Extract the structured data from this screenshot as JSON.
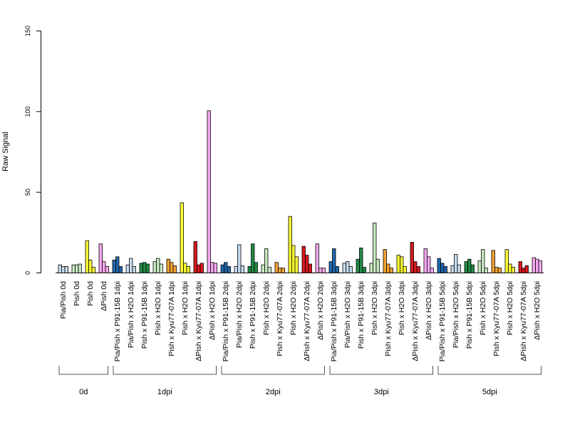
{
  "chart_data": {
    "type": "bar",
    "title": "",
    "xlabel": "",
    "ylabel": "Raw Signal",
    "ylim": [
      0,
      150
    ],
    "yticks": [
      0,
      50,
      100,
      150
    ],
    "bars_per_group": 3,
    "categories": [
      "Pia/Pish 0d",
      "Pish 0d",
      "Pish 0d",
      "ΔPish 0d",
      "Pia/Pish x P91-15B 1dpi",
      "Pia/Pish x H2O 1dpi",
      "Pish x P91-15B 1dpi",
      "Pish x H2O 1dpi",
      "Pish x Kyu77-07A 1dpi",
      "Pish x H2O 1dpi",
      "ΔPish x Kyu77-07A 1dpi",
      "ΔPish x H2O 1dpi",
      "Pia/Pish x P91-15B 2dpi",
      "Pia/Pish x H2O 2dpi",
      "Pish x P91-15B 2dpi",
      "Pish x H2O 2dpi",
      "Pish x Kyu77-07A 2dpi",
      "Pish x H2O 2dpi",
      "ΔPish x Kyu77-07A 2dpi",
      "ΔPish x H2O 2dpi",
      "Pia/Pish x P91-15B 3dpi",
      "Pia/Pish x H2O 3dpi",
      "Pish x P91-15B 3dpi",
      "Pish x H2O 3dpi",
      "Pish x Kyu77-07A 3dpi",
      "Pish x H2O 3dpi",
      "ΔPish x Kyu77-07A 3dpi",
      "ΔPish x H2O 3dpi",
      "Pia/Pish x P91-15B 5dpi",
      "Pia/Pish x H2O 5dpi",
      "Pish x P91-15B 5dpi",
      "Pish x H2O 5dpi",
      "Pish x Kyu77-07A 5dpi",
      "Pish x H2O 5dpi",
      "ΔPish x Kyu77-07A 5dpi",
      "ΔPish x H2O 5dpi"
    ],
    "colors": [
      "#c6dbef",
      "#c7e9c0",
      "#ffff33",
      "#f7a8f0",
      "#2166ac",
      "#c6dbef",
      "#238b45",
      "#c7e9c0",
      "#f4a132",
      "#ffff33",
      "#d7191c",
      "#f7a8f0",
      "#2166ac",
      "#c6dbef",
      "#238b45",
      "#c7e9c0",
      "#f4a132",
      "#ffff33",
      "#d7191c",
      "#f7a8f0",
      "#2166ac",
      "#c6dbef",
      "#238b45",
      "#c7e9c0",
      "#f4a132",
      "#ffff33",
      "#d7191c",
      "#f7a8f0",
      "#2166ac",
      "#c6dbef",
      "#238b45",
      "#c7e9c0",
      "#f4a132",
      "#ffff33",
      "#d7191c",
      "#f7a8f0"
    ],
    "values": [
      [
        5,
        4,
        4
      ],
      [
        5,
        5,
        5.5
      ],
      [
        20,
        8,
        3.5
      ],
      [
        18,
        7,
        4
      ],
      [
        8,
        10,
        4
      ],
      [
        5,
        9,
        4
      ],
      [
        6,
        6.5,
        5.5
      ],
      [
        7,
        9,
        5.5
      ],
      [
        8.5,
        6.5,
        4.5
      ],
      [
        43.5,
        6,
        4
      ],
      [
        19.5,
        5,
        6
      ],
      [
        100.5,
        6.5,
        6
      ],
      [
        5,
        6.5,
        4
      ],
      [
        4,
        17.5,
        4.5
      ],
      [
        4,
        18,
        6.5
      ],
      [
        5,
        15,
        3.5
      ],
      [
        6.5,
        3,
        3
      ],
      [
        35,
        17,
        10
      ],
      [
        16.5,
        11,
        5.5
      ],
      [
        18,
        3,
        3
      ],
      [
        7,
        15,
        4
      ],
      [
        6,
        7,
        4
      ],
      [
        8.5,
        15.5,
        3.5
      ],
      [
        6,
        31,
        8.5
      ],
      [
        14.5,
        5.5,
        3
      ],
      [
        11,
        10,
        4
      ],
      [
        19,
        7,
        4
      ],
      [
        15,
        10,
        3
      ],
      [
        9,
        6,
        4
      ],
      [
        4.5,
        11.5,
        5
      ],
      [
        7,
        8.5,
        5
      ],
      [
        7.5,
        14.5,
        3
      ],
      [
        14,
        3.5,
        3
      ],
      [
        14.5,
        5.5,
        3.5
      ],
      [
        7,
        3,
        4.5
      ],
      [
        9.5,
        8.5,
        7.5
      ]
    ],
    "groups": [
      {
        "label": "0d",
        "start": 0,
        "end": 3
      },
      {
        "label": "1dpi",
        "start": 4,
        "end": 11
      },
      {
        "label": "2dpi",
        "start": 12,
        "end": 19
      },
      {
        "label": "3dpi",
        "start": 20,
        "end": 27
      },
      {
        "label": "5dpi",
        "start": 28,
        "end": 35
      }
    ]
  }
}
